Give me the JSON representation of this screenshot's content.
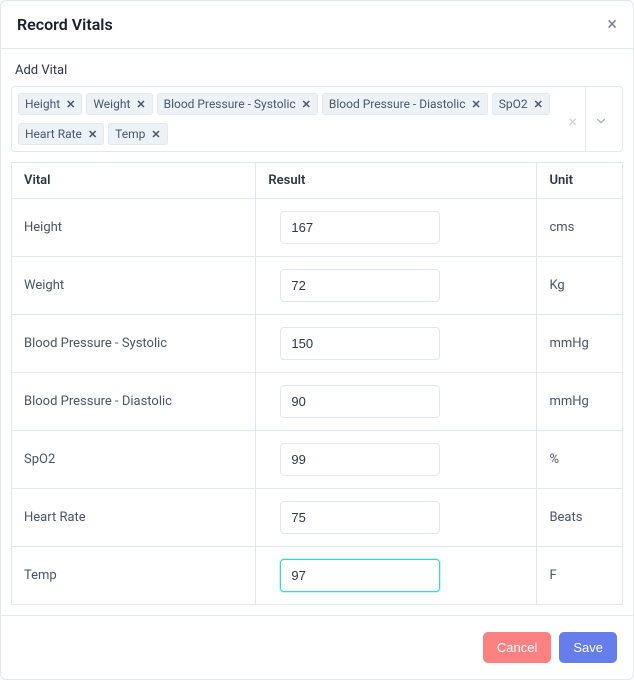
{
  "modal": {
    "title": "Record Vitals",
    "close_glyph": "×"
  },
  "addVital": {
    "label": "Add Vital",
    "clear_glyph": "×",
    "tags": [
      {
        "label": "Height"
      },
      {
        "label": "Weight"
      },
      {
        "label": "Blood Pressure - Systolic"
      },
      {
        "label": "Blood Pressure - Diastolic"
      },
      {
        "label": "SpO2"
      },
      {
        "label": "Heart Rate"
      },
      {
        "label": "Temp"
      }
    ],
    "tag_remove_glyph": "✕"
  },
  "table": {
    "headers": {
      "vital": "Vital",
      "result": "Result",
      "unit": "Unit"
    },
    "rows": [
      {
        "vital": "Height",
        "value": "167",
        "unit": "cms",
        "focused": false
      },
      {
        "vital": "Weight",
        "value": "72",
        "unit": "Kg",
        "focused": false
      },
      {
        "vital": "Blood Pressure - Systolic",
        "value": "150",
        "unit": "mmHg",
        "focused": false
      },
      {
        "vital": "Blood Pressure - Diastolic",
        "value": "90",
        "unit": "mmHg",
        "focused": false
      },
      {
        "vital": "SpO2",
        "value": "99",
        "unit": "%",
        "focused": false
      },
      {
        "vital": "Heart Rate",
        "value": "75",
        "unit": "Beats",
        "focused": false
      },
      {
        "vital": "Temp",
        "value": "97",
        "unit": "F",
        "focused": true
      }
    ]
  },
  "footer": {
    "cancel": "Cancel",
    "save": "Save"
  },
  "colors": {
    "accent_focus": "#38d6d1",
    "btn_cancel": "#fc8181",
    "btn_save": "#667eea",
    "border": "#e2e8f0",
    "tag_bg": "#edf2f7"
  }
}
